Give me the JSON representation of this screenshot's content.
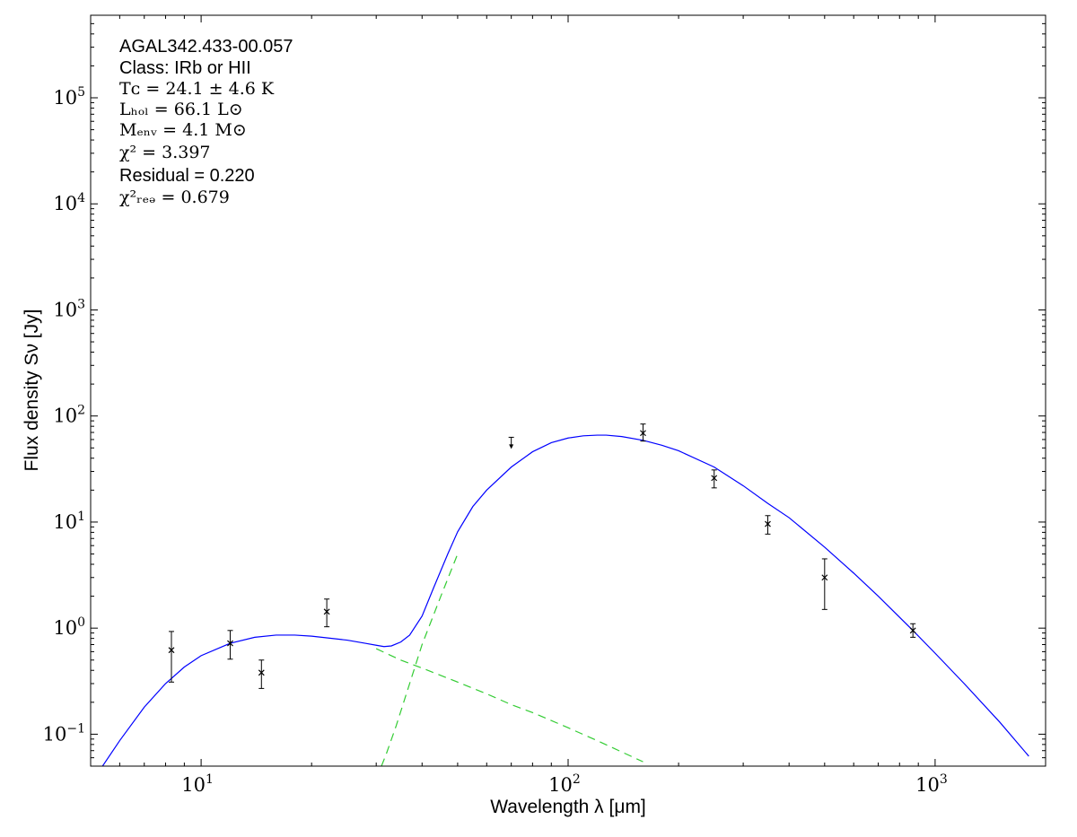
{
  "chart_data": {
    "type": "scatter",
    "title": "",
    "xlabel": "Wavelength λ [μm]",
    "ylabel": "Flux density Sν [Jy]",
    "xscale": "log",
    "yscale": "log",
    "xlim": [
      5,
      2000
    ],
    "ylim": [
      0.05,
      600000
    ],
    "grid": false,
    "x_ticks": [
      {
        "base": "10",
        "exp": "1",
        "value": 10
      },
      {
        "base": "10",
        "exp": "2",
        "value": 100
      },
      {
        "base": "10",
        "exp": "3",
        "value": 1000
      }
    ],
    "y_ticks": [
      {
        "base": "10",
        "exp": "−1",
        "value": 0.1
      },
      {
        "base": "10",
        "exp": "0",
        "value": 1
      },
      {
        "base": "10",
        "exp": "1",
        "value": 10
      },
      {
        "base": "10",
        "exp": "2",
        "value": 100
      },
      {
        "base": "10",
        "exp": "3",
        "value": 1000
      },
      {
        "base": "10",
        "exp": "4",
        "value": 10000
      },
      {
        "base": "10",
        "exp": "5",
        "value": 100000
      }
    ],
    "annotations": [
      {
        "text": "AGAL342.433-00.057",
        "style": "text"
      },
      {
        "text": "Class: IRb or HII",
        "style": "text"
      },
      {
        "text": "Tᴄ = 24.1 ± 4.6 K",
        "style": "math"
      },
      {
        "text": "Lₕₒₗ = 66.1 L⊙",
        "style": "math"
      },
      {
        "text": "Mₑₙᵥ = 4.1 M⊙",
        "style": "math"
      },
      {
        "text": "χ² = 3.397",
        "style": "math"
      },
      {
        "text": "Residual = 0.220",
        "style": "text"
      },
      {
        "text": "χ²ᵣₑₔ = 0.679",
        "style": "math"
      }
    ],
    "points": [
      {
        "x": 8.3,
        "y": 0.62,
        "ylo": 0.31,
        "yhi": 0.93
      },
      {
        "x": 12.0,
        "y": 0.72,
        "ylo": 0.51,
        "yhi": 0.95
      },
      {
        "x": 14.6,
        "y": 0.38,
        "ylo": 0.27,
        "yhi": 0.5
      },
      {
        "x": 22.0,
        "y": 1.43,
        "ylo": 1.03,
        "yhi": 1.88
      },
      {
        "x": 160.0,
        "y": 69.0,
        "ylo": 58.0,
        "yhi": 84.0
      },
      {
        "x": 250.0,
        "y": 26.0,
        "ylo": 21.0,
        "yhi": 31.0
      },
      {
        "x": 350.0,
        "y": 9.6,
        "ylo": 7.7,
        "yhi": 11.5
      },
      {
        "x": 500.0,
        "y": 3.0,
        "ylo": 1.5,
        "yhi": 4.5
      },
      {
        "x": 870.0,
        "y": 0.95,
        "ylo": 0.82,
        "yhi": 1.1
      }
    ],
    "upper_limits": [
      {
        "x": 70.0,
        "y": 63.0
      }
    ],
    "series": [
      {
        "style": "solid",
        "color": "#0000ff",
        "x": [
          5.3,
          6,
          7,
          8,
          9,
          10,
          12,
          14,
          16,
          18,
          20,
          22,
          25,
          28,
          30,
          31.5,
          33,
          35,
          37,
          40,
          43,
          47,
          50,
          55,
          60,
          70,
          80,
          90,
          100,
          110,
          120,
          127,
          140,
          160,
          180,
          200,
          250,
          300,
          350,
          400,
          500,
          600,
          700,
          870,
          1000,
          1200,
          1500,
          1800
        ],
        "values": [
          0.046,
          0.087,
          0.18,
          0.3,
          0.43,
          0.55,
          0.72,
          0.82,
          0.86,
          0.86,
          0.84,
          0.81,
          0.77,
          0.72,
          0.69,
          0.67,
          0.68,
          0.74,
          0.86,
          1.3,
          2.4,
          5.0,
          8.1,
          14,
          20,
          33,
          46,
          56,
          62,
          65,
          66,
          66,
          64,
          59,
          53,
          47,
          33,
          22,
          15,
          11,
          5.8,
          3.3,
          2.0,
          0.95,
          0.58,
          0.3,
          0.13,
          0.062
        ]
      },
      {
        "style": "dashed",
        "color": "#33cc33",
        "x": [
          30,
          35,
          40,
          50,
          60,
          70,
          80,
          100,
          120,
          140,
          160
        ],
        "values": [
          0.64,
          0.5,
          0.42,
          0.31,
          0.24,
          0.19,
          0.16,
          0.115,
          0.087,
          0.068,
          0.055
        ]
      },
      {
        "style": "dashed",
        "color": "#33cc33",
        "x": [
          31,
          32,
          34,
          37,
          40,
          45,
          50
        ],
        "values": [
          0.05,
          0.066,
          0.12,
          0.3,
          0.7,
          2.0,
          5.0
        ]
      }
    ]
  }
}
